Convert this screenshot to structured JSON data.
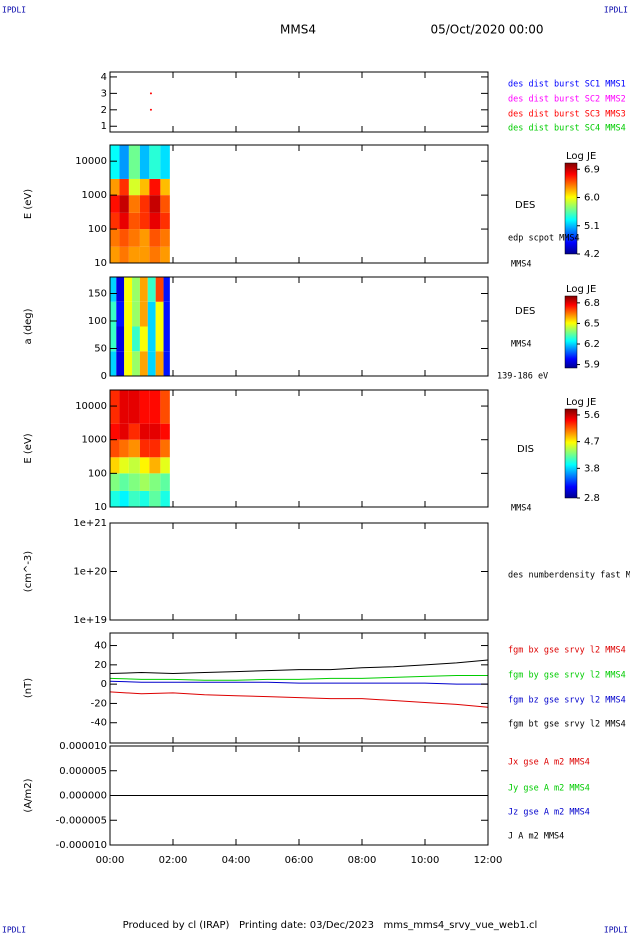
{
  "header": {
    "left": "IPDLI",
    "right": "IPDLI",
    "title": "MMS4",
    "date": "05/Oct/2020 00:00"
  },
  "footer": {
    "text": "Produced by cl (IRAP)   Printing date: 03/Dec/2023   mms_mms4_srvy_vue_web1.cl",
    "left": "IPDLI",
    "right": "IPDLI"
  },
  "chart_data": [
    {
      "type": "scatter",
      "xlim": [
        0,
        12
      ],
      "ylim": [
        0.65,
        4.3
      ],
      "yticks": [
        1,
        2,
        3,
        4
      ],
      "series": [
        {
          "name": "des dist burst SC1 MMS1",
          "color": "#0000ff",
          "x": [],
          "values": []
        },
        {
          "name": "des dist burst SC2 MMS2",
          "color": "#ff00ff",
          "x": [],
          "values": []
        },
        {
          "name": "des dist burst SC3 MMS3",
          "color": "#ff0000",
          "x": [
            1.3,
            1.3
          ],
          "values": [
            3,
            2
          ]
        },
        {
          "name": "des dist burst SC4 MMS4",
          "color": "#00cc00",
          "x": [],
          "values": []
        }
      ]
    },
    {
      "type": "heatmap",
      "ylabel": "E (eV)",
      "log": true,
      "xlim": [
        0,
        12
      ],
      "ylim": [
        10,
        30000
      ],
      "yticks": [
        10,
        100,
        1000,
        10000
      ],
      "labels": [
        "DES",
        "edp scpot MMS4",
        "MMS4"
      ],
      "x_edges": [
        0,
        0.3,
        0.6,
        0.95,
        1.25,
        1.6,
        1.9
      ],
      "y_edges": [
        10,
        30,
        100,
        300,
        1000,
        3000,
        30000
      ],
      "z": [
        [
          6.3,
          6.4,
          6.3,
          6.3,
          6.4,
          6.3
        ],
        [
          6.4,
          6.5,
          6.4,
          6.3,
          6.5,
          6.4
        ],
        [
          6.6,
          6.8,
          6.5,
          6.6,
          6.8,
          6.6
        ],
        [
          6.7,
          6.9,
          6.4,
          6.6,
          6.9,
          6.5
        ],
        [
          6.3,
          6.6,
          5.9,
          6.2,
          6.7,
          6.2
        ],
        [
          5.3,
          5.0,
          5.6,
          5.1,
          5.4,
          5.2
        ]
      ],
      "colorbar": {
        "title": "Log JE",
        "zlim": [
          4.2,
          7.1
        ],
        "zticks": [
          6.9,
          {
            "value": 6,
            "label": "6.0"
          },
          5.1,
          4.2
        ]
      }
    },
    {
      "type": "heatmap",
      "ylabel": "a (deg)",
      "log": false,
      "xlim": [
        0,
        12
      ],
      "ylim": [
        0,
        180
      ],
      "yticks": [
        0,
        50,
        100,
        150
      ],
      "labels": [
        "DES",
        "MMS4",
        "139-186 eV"
      ],
      "x_edges": [
        0,
        0.2,
        0.45,
        0.7,
        0.95,
        1.2,
        1.45,
        1.7,
        1.9
      ],
      "y_edges": [
        0,
        45,
        90,
        135,
        180
      ],
      "z": [
        [
          6.2,
          5.95,
          6.5,
          6.4,
          6.6,
          6.2,
          6.6,
          6.0
        ],
        [
          6.3,
          5.95,
          6.5,
          6.3,
          6.5,
          6.2,
          6.5,
          6.0
        ],
        [
          6.3,
          6.0,
          6.5,
          6.4,
          6.6,
          6.2,
          6.5,
          6.0
        ],
        [
          6.2,
          5.95,
          6.5,
          6.4,
          6.6,
          6.3,
          6.7,
          6.0
        ]
      ],
      "colorbar": {
        "title": "Log JE",
        "zlim": [
          5.85,
          6.9
        ],
        "zticks": [
          6.8,
          6.5,
          6.2,
          5.9
        ]
      }
    },
    {
      "type": "heatmap",
      "ylabel": "E (eV)",
      "log": true,
      "xlim": [
        0,
        12
      ],
      "ylim": [
        10,
        30000
      ],
      "yticks": [
        10,
        100,
        1000,
        10000
      ],
      "labels": [
        "DIS",
        "MMS4"
      ],
      "x_edges": [
        0,
        0.3,
        0.6,
        0.95,
        1.25,
        1.6,
        1.9
      ],
      "y_edges": [
        10,
        30,
        100,
        300,
        1000,
        3000,
        30000
      ],
      "z": [
        [
          4.0,
          3.9,
          4.1,
          4.0,
          4.2,
          4.0
        ],
        [
          4.3,
          4.2,
          4.3,
          4.4,
          4.3,
          4.2
        ],
        [
          4.8,
          4.6,
          4.5,
          4.7,
          4.9,
          4.6
        ],
        [
          5.2,
          5.1,
          5.0,
          5.3,
          5.3,
          5.1
        ],
        [
          5.4,
          5.5,
          5.3,
          5.5,
          5.5,
          5.4
        ],
        [
          5.3,
          5.5,
          5.5,
          5.4,
          5.4,
          5.2
        ]
      ],
      "colorbar": {
        "title": "Log JE",
        "zlim": [
          2.8,
          5.8
        ],
        "zticks": [
          5.6,
          4.7,
          3.8,
          2.8
        ]
      }
    },
    {
      "type": "empty",
      "ylabel": "(cm^-3)",
      "log": true,
      "xlim": [
        0,
        12
      ],
      "ylim": [
        1e+19,
        1e+21
      ],
      "yticks": [
        {
          "value": 1e+21,
          "label": "1e+21"
        },
        {
          "value": 1e+20,
          "label": "1e+20"
        },
        {
          "value": 1e+19,
          "label": "1e+19"
        }
      ],
      "labels": [
        "des numberdensity fast M"
      ]
    },
    {
      "type": "line",
      "ylabel": "(nT)",
      "xlim": [
        0,
        12
      ],
      "ylim": [
        -61,
        53
      ],
      "yticks": [
        40,
        20,
        0,
        -20,
        -40
      ],
      "x": [
        0,
        1,
        2,
        3,
        4,
        5,
        6,
        7,
        8,
        9,
        10,
        11,
        12
      ],
      "series": [
        {
          "name": "fgm bx gse srvy l2 MMS4",
          "color": "#dd0000",
          "values": [
            -8,
            -10,
            -9,
            -11,
            -12,
            -13,
            -14,
            -15,
            -15,
            -17,
            -19,
            -21,
            -24
          ]
        },
        {
          "name": "fgm by gse srvy l2 MMS4",
          "color": "#00cc00",
          "values": [
            6,
            5,
            5,
            4,
            4,
            5,
            5,
            6,
            6,
            7,
            8,
            9,
            9
          ]
        },
        {
          "name": "fgm bz gse srvy l2 MMS4",
          "color": "#0000cc",
          "values": [
            3,
            2,
            2,
            2,
            2,
            2,
            1,
            1,
            1,
            1,
            1,
            0,
            0
          ]
        },
        {
          "name": "fgm bt gse srvy l2 MMS4",
          "color": "#000000",
          "values": [
            11,
            12,
            11,
            12,
            13,
            14,
            15,
            15,
            17,
            18,
            20,
            22,
            25
          ]
        }
      ]
    },
    {
      "type": "line",
      "ylabel": "(A/m2)",
      "xlim": [
        0,
        12
      ],
      "ylim": [
        -1e-05,
        1e-05
      ],
      "yticks": [
        {
          "value": 1e-05,
          "label": "0.000010"
        },
        {
          "value": 5e-06,
          "label": "0.000005"
        },
        {
          "value": 0,
          "label": "0.000000"
        },
        {
          "value": -5e-06,
          "label": "-0.000005"
        },
        {
          "value": -1e-05,
          "label": "-0.000010"
        }
      ],
      "xticks": [
        {
          "value": 0,
          "label": "00:00"
        },
        {
          "value": 2,
          "label": "02:00"
        },
        {
          "value": 4,
          "label": "04:00"
        },
        {
          "value": 6,
          "label": "06:00"
        },
        {
          "value": 8,
          "label": "08:00"
        },
        {
          "value": 10,
          "label": "10:00"
        },
        {
          "value": 12,
          "label": "12:00"
        }
      ],
      "x": [
        0,
        1,
        2,
        3,
        4,
        5,
        6,
        7,
        8,
        9,
        10,
        11,
        12
      ],
      "series": [
        {
          "name": "Jx gse A m2 MMS4",
          "color": "#dd0000",
          "values": [
            0,
            0,
            0,
            0,
            0,
            0,
            0,
            0,
            0,
            0,
            0,
            0,
            0
          ]
        },
        {
          "name": "Jy gse A m2 MMS4",
          "color": "#00cc00",
          "values": [
            0,
            0,
            0,
            0,
            0,
            0,
            0,
            0,
            0,
            0,
            0,
            0,
            0
          ]
        },
        {
          "name": "Jz gse A m2 MMS4",
          "color": "#0000cc",
          "values": [
            0,
            0,
            0,
            0,
            0,
            0,
            0,
            0,
            0,
            0,
            0,
            0,
            0
          ]
        },
        {
          "name": "J A m2 MMS4",
          "color": "#000000",
          "values": [
            0,
            0,
            0,
            0,
            0,
            0,
            0,
            0,
            0,
            0,
            0,
            0,
            0
          ]
        }
      ]
    }
  ]
}
